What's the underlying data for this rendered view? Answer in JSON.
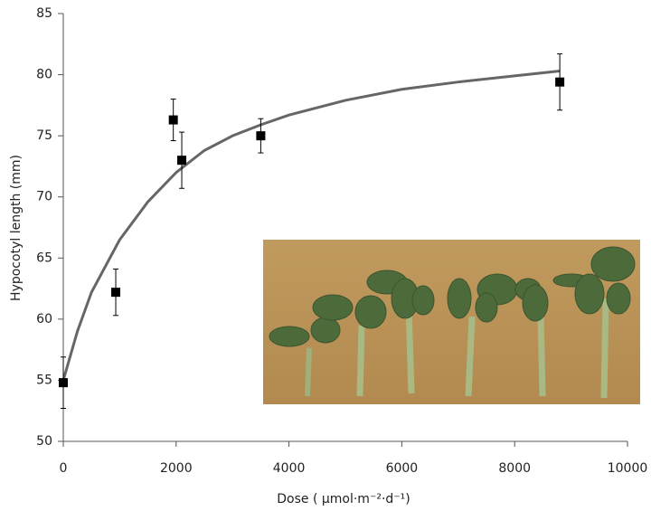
{
  "chart_data": {
    "type": "scatter",
    "x_label": "Dose ( μmol·m⁻²·d⁻¹)",
    "y_label": "Hypocotyl length (mm)",
    "xlim": [
      0,
      10000
    ],
    "ylim": [
      50,
      85
    ],
    "xticks": [
      0,
      2000,
      4000,
      6000,
      8000,
      10000
    ],
    "yticks": [
      50,
      55,
      60,
      65,
      70,
      75,
      80,
      85
    ],
    "points": {
      "color": "#000000",
      "x": [
        0,
        930,
        1950,
        2100,
        3500,
        8800
      ],
      "values": [
        54.8,
        62.2,
        76.3,
        73.0,
        75.0,
        79.4
      ],
      "errors": [
        2.1,
        1.9,
        1.7,
        2.3,
        1.4,
        2.3
      ]
    },
    "fit": {
      "type": "line",
      "color": "#666666",
      "x": [
        0,
        250,
        500,
        1000,
        1500,
        2000,
        2500,
        3000,
        3500,
        4000,
        5000,
        6000,
        7000,
        8000,
        8800
      ],
      "values": [
        55,
        59,
        62.2,
        66.5,
        69.6,
        72,
        73.8,
        75,
        75.9,
        76.7,
        77.9,
        78.8,
        79.4,
        79.9,
        80.3
      ]
    }
  }
}
